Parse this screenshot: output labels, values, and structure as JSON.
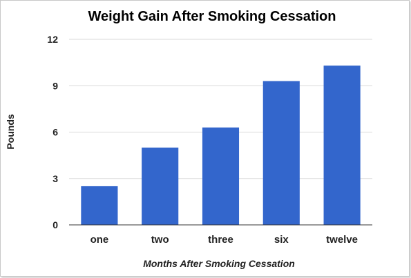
{
  "chart_data": {
    "type": "bar",
    "title": "Weight Gain After Smoking Cessation",
    "xlabel": "Months After Smoking Cessation",
    "ylabel": "Pounds",
    "categories": [
      "one",
      "two",
      "three",
      "six",
      "twelve"
    ],
    "values": [
      2.5,
      5.0,
      6.3,
      9.3,
      10.3
    ],
    "ylim": [
      0,
      12
    ],
    "yticks": [
      "0",
      "3",
      "6",
      "9",
      "12"
    ],
    "grid": true,
    "legend": "none",
    "bar_color": "#3366cc"
  }
}
